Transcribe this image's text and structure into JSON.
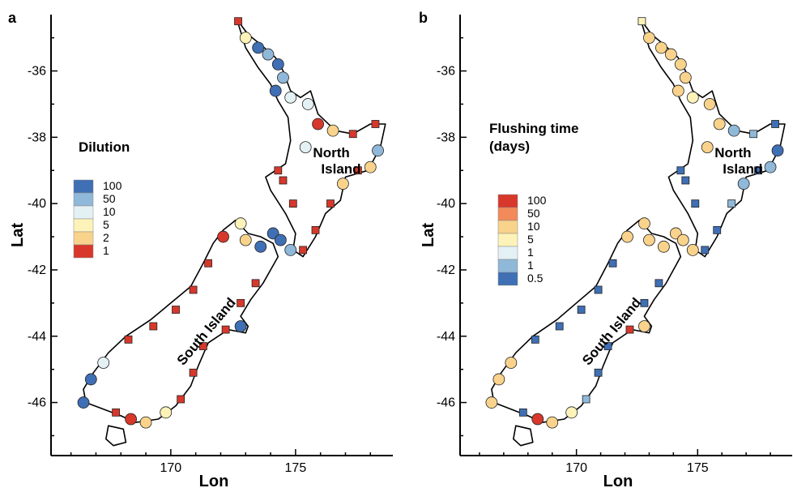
{
  "panels": [
    {
      "id": "a",
      "letter": "a",
      "legend_title_lines": [
        "Dilution"
      ],
      "legend": [
        {
          "label": "100",
          "color": "#3f6fb4"
        },
        {
          "label": "50",
          "color": "#8fb8d9"
        },
        {
          "label": "10",
          "color": "#e4f1f4"
        },
        {
          "label": "5",
          "color": "#fdf3b8"
        },
        {
          "label": "2",
          "color": "#f9d38c"
        },
        {
          "label": "1",
          "color": "#d7382b"
        }
      ],
      "x_axis_label": "Lon",
      "y_axis_label": "Lat",
      "island_labels": {
        "north": [
          "North",
          "Island"
        ],
        "south": "South Island"
      }
    },
    {
      "id": "b",
      "letter": "b",
      "legend_title_lines": [
        "Flushing time",
        "(days)"
      ],
      "legend": [
        {
          "label": "100",
          "color": "#d7382b"
        },
        {
          "label": "50",
          "color": "#f38a5a"
        },
        {
          "label": "10",
          "color": "#f9d38c"
        },
        {
          "label": "5",
          "color": "#fdf3b8"
        },
        {
          "label": "1",
          "color": "#e4f1f4"
        },
        {
          "label": "1",
          "color": "#8fb8d9"
        },
        {
          "label": "0.5",
          "color": "#3f6fb4"
        }
      ],
      "x_axis_label": "Lon",
      "y_axis_label": "Lat",
      "island_labels": {
        "north": [
          "North",
          "Island"
        ],
        "south": "South Island"
      }
    }
  ],
  "axes": {
    "lat_ticks": [
      "-36",
      "-38",
      "-40",
      "-42",
      "-44",
      "-46"
    ],
    "lon_ticks": [
      "170",
      "175"
    ],
    "lat_values": [
      -36,
      -38,
      -40,
      -42,
      -44,
      -46
    ],
    "lon_values": [
      170,
      175
    ],
    "lat_range": [
      -47.6,
      -34.3
    ],
    "lon_range": [
      165.2,
      178.9
    ]
  },
  "estuaries": [
    {
      "lon": 172.7,
      "lat": -34.5,
      "shape": "square",
      "a": "#d7382b",
      "b": "#fdf3b8"
    },
    {
      "lon": 173.0,
      "lat": -35.0,
      "shape": "circle",
      "a": "#fdf3b8",
      "b": "#f9d38c"
    },
    {
      "lon": 173.5,
      "lat": -35.3,
      "shape": "circle",
      "a": "#3f6fb4",
      "b": "#f9d38c"
    },
    {
      "lon": 173.9,
      "lat": -35.5,
      "shape": "circle",
      "a": "#8fb8d9",
      "b": "#f9d38c"
    },
    {
      "lon": 174.3,
      "lat": -35.8,
      "shape": "circle",
      "a": "#3f6fb4",
      "b": "#f9d38c"
    },
    {
      "lon": 174.5,
      "lat": -36.2,
      "shape": "circle",
      "a": "#8fb8d9",
      "b": "#f9d38c"
    },
    {
      "lon": 174.8,
      "lat": -36.8,
      "shape": "circle",
      "a": "#e4f1f4",
      "b": "#fdf3b8"
    },
    {
      "lon": 174.2,
      "lat": -36.6,
      "shape": "circle",
      "a": "#3f6fb4",
      "b": "#f9d38c"
    },
    {
      "lon": 175.5,
      "lat": -37.0,
      "shape": "circle",
      "a": "#e4f1f4",
      "b": "#f9d38c"
    },
    {
      "lon": 175.9,
      "lat": -37.6,
      "shape": "circle",
      "a": "#d7382b",
      "b": "#f9d38c"
    },
    {
      "lon": 176.5,
      "lat": -37.8,
      "shape": "circle",
      "a": "#f9d38c",
      "b": "#8fb8d9"
    },
    {
      "lon": 177.3,
      "lat": -37.9,
      "shape": "square",
      "a": "#d7382b",
      "b": "#8fb8d9"
    },
    {
      "lon": 178.2,
      "lat": -37.6,
      "shape": "square",
      "a": "#d7382b",
      "b": "#3f6fb4"
    },
    {
      "lon": 178.3,
      "lat": -38.4,
      "shape": "circle",
      "a": "#8fb8d9",
      "b": "#3f6fb4"
    },
    {
      "lon": 178.0,
      "lat": -38.9,
      "shape": "circle",
      "a": "#f9d38c",
      "b": "#8fb8d9"
    },
    {
      "lon": 177.5,
      "lat": -39.0,
      "shape": "square",
      "a": "#d7382b",
      "b": "#3f6fb4"
    },
    {
      "lon": 176.9,
      "lat": -39.4,
      "shape": "circle",
      "a": "#f9d38c",
      "b": "#8fb8d9"
    },
    {
      "lon": 176.4,
      "lat": -40.0,
      "shape": "square",
      "a": "#d7382b",
      "b": "#8fb8d9"
    },
    {
      "lon": 175.8,
      "lat": -40.8,
      "shape": "square",
      "a": "#d7382b",
      "b": "#3f6fb4"
    },
    {
      "lon": 175.3,
      "lat": -41.4,
      "shape": "square",
      "a": "#d7382b",
      "b": "#3f6fb4"
    },
    {
      "lon": 174.8,
      "lat": -41.4,
      "shape": "circle",
      "a": "#8fb8d9",
      "b": "#f9d38c"
    },
    {
      "lon": 174.1,
      "lat": -40.9,
      "shape": "circle",
      "a": "#3f6fb4",
      "b": "#f9d38c"
    },
    {
      "lon": 174.4,
      "lat": -41.1,
      "shape": "circle",
      "a": "#3f6fb4",
      "b": "#f9d38c"
    },
    {
      "lon": 173.6,
      "lat": -41.3,
      "shape": "circle",
      "a": "#3f6fb4",
      "b": "#f9d38c"
    },
    {
      "lon": 174.9,
      "lat": -40.0,
      "shape": "square",
      "a": "#d7382b",
      "b": "#3f6fb4"
    },
    {
      "lon": 174.5,
      "lat": -39.3,
      "shape": "square",
      "a": "#d7382b",
      "b": "#3f6fb4"
    },
    {
      "lon": 174.3,
      "lat": -39.0,
      "shape": "square",
      "a": "#d7382b",
      "b": "#3f6fb4"
    },
    {
      "lon": 175.4,
      "lat": -38.3,
      "shape": "circle",
      "a": "#e4f1f4",
      "b": "#f9d38c"
    },
    {
      "lon": 172.8,
      "lat": -40.6,
      "shape": "circle",
      "a": "#fdf3b8",
      "b": "#f9d38c"
    },
    {
      "lon": 173.0,
      "lat": -41.1,
      "shape": "circle",
      "a": "#f9d38c",
      "b": "#f9d38c"
    },
    {
      "lon": 172.1,
      "lat": -41.0,
      "shape": "circle",
      "a": "#d7382b",
      "b": "#f9d38c"
    },
    {
      "lon": 171.5,
      "lat": -41.8,
      "shape": "square",
      "a": "#d7382b",
      "b": "#3f6fb4"
    },
    {
      "lon": 170.9,
      "lat": -42.6,
      "shape": "square",
      "a": "#d7382b",
      "b": "#3f6fb4"
    },
    {
      "lon": 170.2,
      "lat": -43.2,
      "shape": "square",
      "a": "#d7382b",
      "b": "#3f6fb4"
    },
    {
      "lon": 169.3,
      "lat": -43.7,
      "shape": "square",
      "a": "#d7382b",
      "b": "#3f6fb4"
    },
    {
      "lon": 168.3,
      "lat": -44.1,
      "shape": "square",
      "a": "#d7382b",
      "b": "#3f6fb4"
    },
    {
      "lon": 167.3,
      "lat": -44.8,
      "shape": "circle",
      "a": "#e4f1f4",
      "b": "#f9d38c"
    },
    {
      "lon": 166.8,
      "lat": -45.3,
      "shape": "circle",
      "a": "#3f6fb4",
      "b": "#f9d38c"
    },
    {
      "lon": 166.5,
      "lat": -46.0,
      "shape": "circle",
      "a": "#3f6fb4",
      "b": "#f9d38c"
    },
    {
      "lon": 167.8,
      "lat": -46.3,
      "shape": "square",
      "a": "#d7382b",
      "b": "#3f6fb4"
    },
    {
      "lon": 168.4,
      "lat": -46.5,
      "shape": "circle",
      "a": "#d7382b",
      "b": "#d7382b"
    },
    {
      "lon": 169.0,
      "lat": -46.6,
      "shape": "circle",
      "a": "#f9d38c",
      "b": "#f9d38c"
    },
    {
      "lon": 169.8,
      "lat": -46.3,
      "shape": "circle",
      "a": "#fdf3b8",
      "b": "#fdf3b8"
    },
    {
      "lon": 170.4,
      "lat": -45.9,
      "shape": "square",
      "a": "#d7382b",
      "b": "#8fb8d9"
    },
    {
      "lon": 170.9,
      "lat": -45.1,
      "shape": "square",
      "a": "#d7382b",
      "b": "#3f6fb4"
    },
    {
      "lon": 171.3,
      "lat": -44.3,
      "shape": "square",
      "a": "#d7382b",
      "b": "#3f6fb4"
    },
    {
      "lon": 172.2,
      "lat": -43.8,
      "shape": "square",
      "a": "#d7382b",
      "b": "#d7382b"
    },
    {
      "lon": 172.8,
      "lat": -43.7,
      "shape": "circle",
      "a": "#3f6fb4",
      "b": "#f9d38c"
    },
    {
      "lon": 172.8,
      "lat": -43.0,
      "shape": "square",
      "a": "#d7382b",
      "b": "#3f6fb4"
    },
    {
      "lon": 173.4,
      "lat": -42.4,
      "shape": "square",
      "a": "#d7382b",
      "b": "#3f6fb4"
    }
  ]
}
